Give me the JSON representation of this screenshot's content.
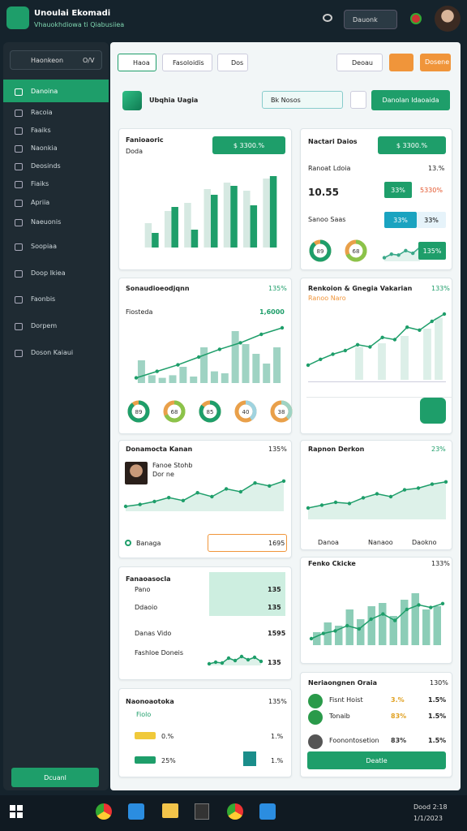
{
  "header": {
    "title": "Unoulai Ekomadi",
    "subtitle": "Vhauokhdiowa ti Qiabusiiea",
    "button": "Dauonk"
  },
  "sidebar": {
    "search": "Haonkeon",
    "search_hint": "O/V",
    "items": [
      "Danoina",
      "Racoia",
      "Faaiks",
      "Naonkia",
      "Deosinds",
      "Fiaiks",
      "Apriia",
      "Naeuonis",
      "Soopiaa",
      "Doop Ikiea",
      "Faonbis",
      "Dorpem",
      "Doson Kaiaui"
    ],
    "footer_button": "Dcuanl"
  },
  "toolbar": {
    "tabs": [
      "Haoa",
      "Fasoloidis",
      "Dos"
    ],
    "select": "Deoau",
    "button": "Dosene"
  },
  "page_header": {
    "title": "Ubqhia Uagia",
    "select": "Bk Nosos",
    "button": "Danolan Idaoaida"
  },
  "cards": {
    "sales": {
      "title": "Fanioaoric",
      "subtitle": "Doda",
      "button": "$ 3300.%",
      "chart": {
        "ylim": [
          0,
          100
        ],
        "bars": [
          {
            "color": "#d6e9e2",
            "values": [
              30,
              45,
              55,
              72,
              80,
              70,
              85
            ]
          },
          {
            "color": "#1e9e6a",
            "values": [
              18,
              50,
              22,
              65,
              76,
              52,
              88
            ]
          }
        ]
      }
    },
    "sessions": {
      "title": "Sonaudioeodjqnn",
      "badge": "135%",
      "subtitle": "Fiosteda",
      "value": "1,6000",
      "chart": {
        "ylim": [
          0,
          100
        ],
        "bars": [
          {
            "color": "#9fd3c3",
            "values": [
              35,
              12,
              8,
              12,
              25,
              10,
              55,
              18,
              15,
              80,
              60,
              45,
              30,
              55
            ]
          }
        ],
        "line": {
          "color": "#1e9e6a",
          "values": [
            8,
            18,
            28,
            40,
            52,
            62,
            75,
            85
          ]
        }
      },
      "donuts": [
        89,
        68,
        85,
        40,
        38
      ]
    },
    "person": {
      "title": "Donamocta Kanan",
      "badge": "135%",
      "name": "Fanoe Stohb",
      "role": "Dor ne",
      "chart": {
        "ylim": [
          0,
          100
        ],
        "line": {
          "color": "#1e9e6a",
          "area": true,
          "values": [
            10,
            14,
            20,
            28,
            22,
            38,
            30,
            46,
            40,
            58,
            52,
            62
          ]
        }
      },
      "footer": "Banaga",
      "value": "1695"
    },
    "list": {
      "title": "Fanaoasocla",
      "rows": [
        {
          "label": "Pano",
          "value": "135"
        },
        {
          "label": "Ddaoio",
          "value": "135"
        },
        {
          "label": "Danas Vido",
          "value": "1595"
        },
        {
          "label": "Fashloe Doneis",
          "value": "135"
        }
      ],
      "chart": {
        "ylim": [
          0,
          100
        ],
        "line": {
          "color": "#1e9e6a",
          "area": true,
          "values": [
            10,
            20,
            15,
            45,
            30,
            55,
            35,
            50,
            25
          ]
        }
      }
    },
    "notes": {
      "title": "Naonoaotoka",
      "badge": "135%",
      "tag": "Fiolo",
      "rows": [
        {
          "label": "0.%",
          "value": "1.%"
        },
        {
          "label": "25%",
          "value": "1.%"
        }
      ]
    },
    "stats": {
      "title": "Nactari Daios",
      "button": "$ 3300.%",
      "subtitle": "Ranoat Ldoia",
      "badge": "13.%",
      "big": "10.55",
      "chip": "33%",
      "delta": "5330%",
      "label2": "Sanoo Saas",
      "chip2": "33%",
      "chip3": "33%",
      "donuts": [
        89,
        68
      ],
      "chip4": "135%",
      "chart": {
        "ylim": [
          0,
          100
        ],
        "line": {
          "color": "#3aa889",
          "area": true,
          "values": [
            20,
            40,
            35,
            60,
            45,
            80
          ]
        }
      }
    },
    "trend": {
      "title": "Renkoion & Gnegia Vakarian",
      "badge": "133%",
      "subtitle": "Ranoo Naro",
      "chart": {
        "ylim": [
          0,
          100
        ],
        "bars": [
          {
            "color": "#dcefe8",
            "values": [
              0,
              0,
              0,
              0,
              45,
              0,
              50,
              0,
              60,
              0,
              70,
              85
            ]
          }
        ],
        "line": {
          "color": "#1e9e6a",
          "values": [
            20,
            28,
            35,
            40,
            48,
            45,
            58,
            55,
            72,
            68,
            80,
            90
          ]
        }
      }
    },
    "region": {
      "title": "Rapnon Derkon",
      "badge": "23%",
      "chart": {
        "ylim": [
          0,
          100
        ],
        "line": {
          "color": "#1e9e6a",
          "area": true,
          "values": [
            20,
            25,
            30,
            28,
            38,
            45,
            40,
            52,
            55,
            62,
            66
          ]
        }
      },
      "legend": [
        "Danoa",
        "Nanaoo",
        "Daokno"
      ]
    },
    "clicks": {
      "title": "Fenko Ckicke",
      "badge": "133%",
      "chart": {
        "ylim": [
          0,
          100
        ],
        "bars": [
          {
            "color": "#8ccdb7",
            "values": [
              20,
              35,
              30,
              55,
              40,
              60,
              65,
              45,
              70,
              80,
              55,
              60
            ]
          }
        ],
        "line": {
          "color": "#1e9e6a",
          "values": [
            10,
            18,
            22,
            30,
            25,
            40,
            48,
            38,
            55,
            62,
            58,
            64
          ]
        }
      }
    },
    "team": {
      "title": "Neriaongnen Oraia",
      "badge": "130%",
      "rows": [
        {
          "name": "Fisnt Hoist",
          "a": "3.%",
          "b": "1.5%"
        },
        {
          "name": "Tonaib",
          "a": "83%",
          "b": "1.5%"
        },
        {
          "name": "Foonontosetion",
          "a": "83%",
          "b": "1.5%"
        }
      ],
      "button": "Deatle"
    }
  },
  "taskbar": {
    "clock": "Dood 2:18",
    "date": "1/1/2023"
  }
}
